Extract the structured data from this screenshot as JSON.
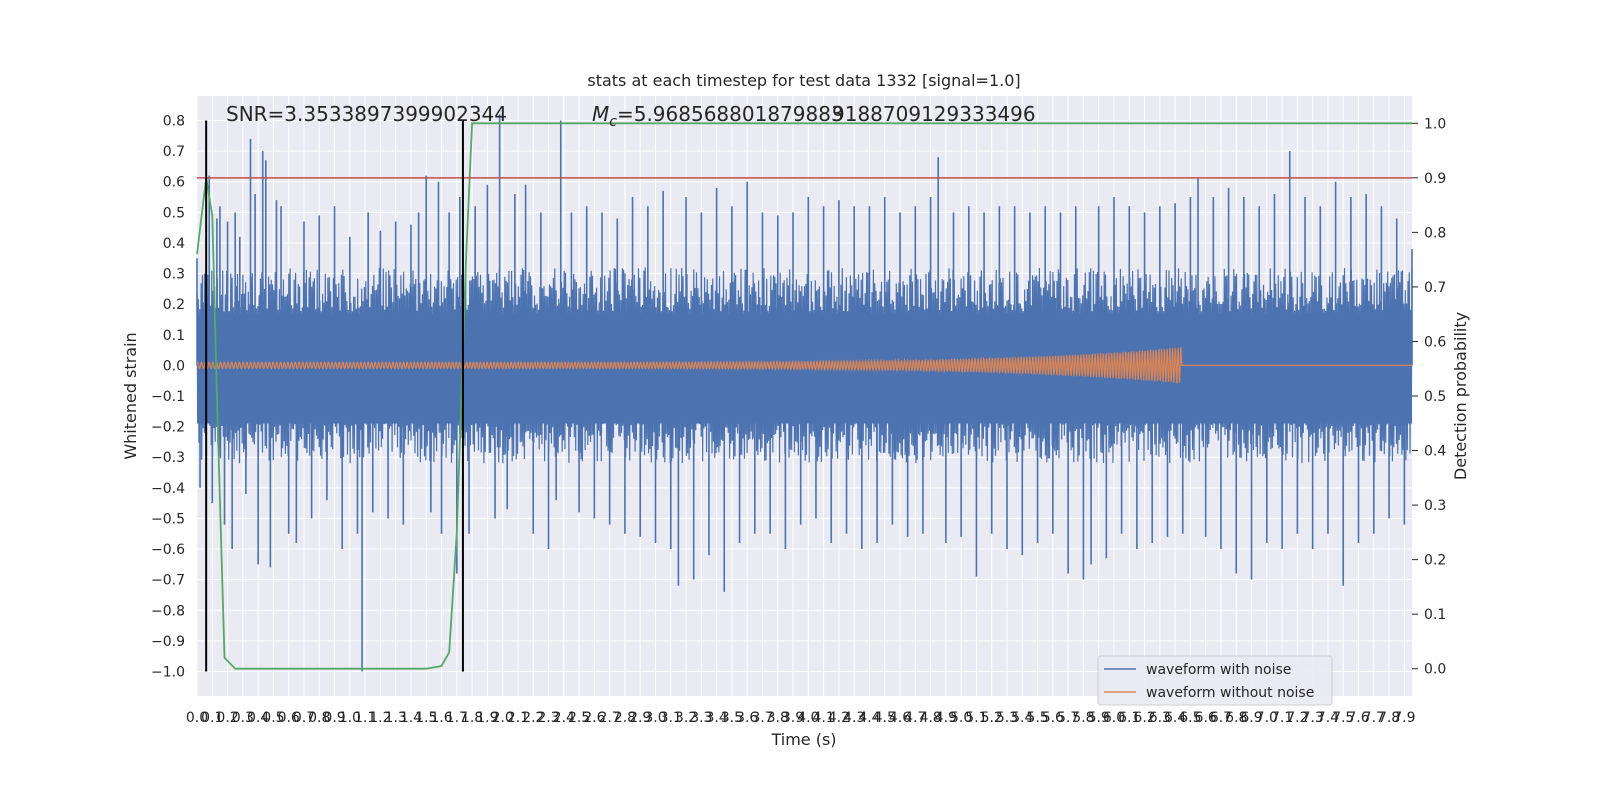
{
  "chart_data": {
    "type": "line",
    "title": "stats at each timestep for test data 1332 [signal=1.0]",
    "xlabel": "Time (s)",
    "ylabel_left": "Whitened strain",
    "ylabel_right": "Detection probability",
    "xlim": [
      0.0,
      7.95
    ],
    "ylim_left": [
      -1.08,
      0.88
    ],
    "ylim_right": [
      -0.05,
      1.05
    ],
    "x_ticks": [
      "0.0",
      "0.1",
      "0.2",
      "0.3",
      "0.4",
      "0.5",
      "0.6",
      "0.7",
      "0.8",
      "0.9",
      "1.0",
      "1.1",
      "1.2",
      "1.3",
      "1.4",
      "1.5",
      "1.6",
      "1.7",
      "1.8",
      "1.9",
      "2.0",
      "2.1",
      "2.2",
      "2.3",
      "2.4",
      "2.5",
      "2.6",
      "2.7",
      "2.8",
      "2.9",
      "3.0",
      "3.1",
      "3.2",
      "3.3",
      "3.4",
      "3.5",
      "3.6",
      "3.7",
      "3.8",
      "3.9",
      "4.0",
      "4.1",
      "4.2",
      "4.3",
      "4.4",
      "4.5",
      "4.6",
      "4.7",
      "4.8",
      "4.9",
      "5.0",
      "5.1",
      "5.2",
      "5.3",
      "5.4",
      "5.5",
      "5.6",
      "5.7",
      "5.8",
      "5.9",
      "6.0",
      "6.1",
      "6.2",
      "6.3",
      "6.4",
      "6.5",
      "6.6",
      "6.7",
      "6.8",
      "6.9",
      "7.0",
      "7.1",
      "7.2",
      "7.3",
      "7.4",
      "7.5",
      "7.6",
      "7.7",
      "7.8",
      "7.9"
    ],
    "y_ticks_left": [
      "0.8",
      "0.7",
      "0.6",
      "0.5",
      "0.4",
      "0.3",
      "0.2",
      "0.1",
      "0.0",
      "−0.1",
      "−0.2",
      "−0.3",
      "−0.4",
      "−0.5",
      "−0.6",
      "−0.7",
      "−0.8",
      "−0.9",
      "−1.0"
    ],
    "y_ticks_right": [
      "1.0",
      "0.9",
      "0.8",
      "0.7",
      "0.6",
      "0.5",
      "0.4",
      "0.3",
      "0.2",
      "0.1",
      "0.0"
    ],
    "annotations": {
      "snr": "SNR=3.3533897399902344",
      "mc_prefix": "M",
      "mc_sub": "c",
      "mc_value": "=5.968568801879883",
      "mc_overlap": "9188709129333496"
    },
    "grid": true,
    "legend_position": "lower-right",
    "threshold": {
      "axis": "right",
      "y": 0.9,
      "color": "#c44e52"
    },
    "vlines": {
      "axis": "left",
      "x": [
        0.06,
        1.74
      ],
      "y_range": [
        -1.0,
        0.8
      ],
      "color": "#000000"
    },
    "series": [
      {
        "name": "waveform with noise",
        "color": "#4c72b0",
        "axis": "left",
        "kind": "noise",
        "typical_envelope": 0.32,
        "spikes": [
          [
            0.0,
            0.35
          ],
          [
            0.02,
            -0.4
          ],
          [
            0.05,
            0.3
          ],
          [
            0.08,
            0.62
          ],
          [
            0.1,
            -0.45
          ],
          [
            0.13,
            0.48
          ],
          [
            0.15,
            0.52
          ],
          [
            0.18,
            -0.52
          ],
          [
            0.2,
            0.47
          ],
          [
            0.23,
            -0.6
          ],
          [
            0.25,
            0.5
          ],
          [
            0.28,
            0.42
          ],
          [
            0.32,
            -0.42
          ],
          [
            0.35,
            0.74
          ],
          [
            0.38,
            0.56
          ],
          [
            0.4,
            -0.65
          ],
          [
            0.43,
            0.7
          ],
          [
            0.45,
            0.67
          ],
          [
            0.48,
            -0.66
          ],
          [
            0.52,
            0.54
          ],
          [
            0.55,
            0.52
          ],
          [
            0.6,
            -0.55
          ],
          [
            0.65,
            -0.58
          ],
          [
            0.7,
            0.47
          ],
          [
            0.75,
            -0.5
          ],
          [
            0.8,
            0.49
          ],
          [
            0.85,
            -0.44
          ],
          [
            0.9,
            0.52
          ],
          [
            0.95,
            -0.6
          ],
          [
            1.0,
            0.42
          ],
          [
            1.05,
            -0.55
          ],
          [
            1.08,
            -1.0
          ],
          [
            1.12,
            0.5
          ],
          [
            1.15,
            -0.48
          ],
          [
            1.2,
            0.44
          ],
          [
            1.25,
            -0.5
          ],
          [
            1.3,
            0.47
          ],
          [
            1.35,
            -0.52
          ],
          [
            1.4,
            0.46
          ],
          [
            1.45,
            0.5
          ],
          [
            1.5,
            0.62
          ],
          [
            1.53,
            -0.48
          ],
          [
            1.58,
            0.6
          ],
          [
            1.6,
            -0.55
          ],
          [
            1.65,
            0.5
          ],
          [
            1.7,
            -0.68
          ],
          [
            1.72,
            0.55
          ],
          [
            1.78,
            -0.55
          ],
          [
            1.82,
            0.52
          ],
          [
            1.9,
            0.59
          ],
          [
            1.95,
            -0.5
          ],
          [
            1.98,
            0.82
          ],
          [
            2.03,
            -0.47
          ],
          [
            2.08,
            0.56
          ],
          [
            2.15,
            0.59
          ],
          [
            2.2,
            -0.55
          ],
          [
            2.25,
            0.5
          ],
          [
            2.3,
            -0.6
          ],
          [
            2.35,
            -0.44
          ],
          [
            2.38,
            0.8
          ],
          [
            2.45,
            0.5
          ],
          [
            2.5,
            -0.48
          ],
          [
            2.55,
            0.52
          ],
          [
            2.6,
            -0.5
          ],
          [
            2.65,
            0.5
          ],
          [
            2.7,
            -0.52
          ],
          [
            2.75,
            0.48
          ],
          [
            2.8,
            -0.55
          ],
          [
            2.85,
            0.55
          ],
          [
            2.9,
            -0.56
          ],
          [
            2.95,
            0.52
          ],
          [
            3.0,
            -0.58
          ],
          [
            3.05,
            0.57
          ],
          [
            3.1,
            -0.6
          ],
          [
            3.15,
            -0.72
          ],
          [
            3.2,
            0.55
          ],
          [
            3.25,
            -0.7
          ],
          [
            3.3,
            0.5
          ],
          [
            3.35,
            -0.62
          ],
          [
            3.4,
            0.58
          ],
          [
            3.45,
            -0.74
          ],
          [
            3.5,
            0.52
          ],
          [
            3.55,
            -0.58
          ],
          [
            3.6,
            0.6
          ],
          [
            3.65,
            -0.55
          ],
          [
            3.7,
            0.5
          ],
          [
            3.75,
            -0.55
          ],
          [
            3.8,
            0.49
          ],
          [
            3.85,
            -0.6
          ],
          [
            3.9,
            0.5
          ],
          [
            3.95,
            -0.52
          ],
          [
            4.0,
            0.55
          ],
          [
            4.05,
            -0.5
          ],
          [
            4.1,
            0.52
          ],
          [
            4.15,
            -0.58
          ],
          [
            4.2,
            0.54
          ],
          [
            4.25,
            -0.55
          ],
          [
            4.3,
            0.52
          ],
          [
            4.35,
            -0.6
          ],
          [
            4.4,
            0.52
          ],
          [
            4.45,
            -0.58
          ],
          [
            4.5,
            0.55
          ],
          [
            4.55,
            -0.52
          ],
          [
            4.6,
            0.5
          ],
          [
            4.65,
            -0.56
          ],
          [
            4.7,
            0.52
          ],
          [
            4.75,
            -0.55
          ],
          [
            4.8,
            0.55
          ],
          [
            4.85,
            0.68
          ],
          [
            4.9,
            -0.58
          ],
          [
            4.95,
            0.5
          ],
          [
            5.0,
            -0.56
          ],
          [
            5.05,
            0.52
          ],
          [
            5.1,
            -0.69
          ],
          [
            5.15,
            0.5
          ],
          [
            5.2,
            -0.55
          ],
          [
            5.25,
            0.52
          ],
          [
            5.3,
            -0.6
          ],
          [
            5.35,
            0.52
          ],
          [
            5.4,
            -0.62
          ],
          [
            5.45,
            0.5
          ],
          [
            5.5,
            -0.58
          ],
          [
            5.55,
            0.52
          ],
          [
            5.6,
            -0.55
          ],
          [
            5.65,
            0.5
          ],
          [
            5.7,
            -0.68
          ],
          [
            5.75,
            0.52
          ],
          [
            5.8,
            -0.7
          ],
          [
            5.85,
            -0.65
          ],
          [
            5.9,
            0.52
          ],
          [
            5.95,
            -0.63
          ],
          [
            6.0,
            0.55
          ],
          [
            6.05,
            -0.55
          ],
          [
            6.1,
            0.52
          ],
          [
            6.15,
            -0.6
          ],
          [
            6.2,
            0.5
          ],
          [
            6.25,
            -0.58
          ],
          [
            6.3,
            0.52
          ],
          [
            6.35,
            -0.56
          ],
          [
            6.4,
            0.53
          ],
          [
            6.45,
            -0.55
          ],
          [
            6.5,
            0.55
          ],
          [
            6.55,
            0.61
          ],
          [
            6.6,
            -0.56
          ],
          [
            6.65,
            0.55
          ],
          [
            6.7,
            -0.6
          ],
          [
            6.75,
            0.58
          ],
          [
            6.8,
            -0.68
          ],
          [
            6.85,
            0.55
          ],
          [
            6.9,
            -0.7
          ],
          [
            6.95,
            0.52
          ],
          [
            7.0,
            -0.58
          ],
          [
            7.05,
            0.56
          ],
          [
            7.1,
            -0.6
          ],
          [
            7.15,
            0.7
          ],
          [
            7.2,
            -0.55
          ],
          [
            7.25,
            0.55
          ],
          [
            7.3,
            -0.6
          ],
          [
            7.35,
            0.52
          ],
          [
            7.4,
            -0.55
          ],
          [
            7.45,
            0.6
          ],
          [
            7.5,
            -0.72
          ],
          [
            7.55,
            0.55
          ],
          [
            7.6,
            -0.58
          ],
          [
            7.65,
            0.56
          ],
          [
            7.7,
            -0.55
          ],
          [
            7.75,
            0.52
          ],
          [
            7.8,
            -0.5
          ],
          [
            7.85,
            0.48
          ],
          [
            7.9,
            -0.52
          ],
          [
            7.95,
            0.38
          ]
        ]
      },
      {
        "name": "waveform without noise",
        "color": "#dd8452",
        "axis": "left",
        "kind": "chirp",
        "x_range": [
          0.0,
          6.44
        ],
        "amplitude_start": 0.01,
        "amplitude_peak": 0.06,
        "merger_x": 6.44
      },
      {
        "name": "detection probability",
        "color": "#55a868",
        "axis": "right",
        "points": [
          [
            0.0,
            0.76
          ],
          [
            0.06,
            0.9
          ],
          [
            0.1,
            0.83
          ],
          [
            0.13,
            0.5
          ],
          [
            0.18,
            0.02
          ],
          [
            0.25,
            0.0
          ],
          [
            1.0,
            0.0
          ],
          [
            1.5,
            0.0
          ],
          [
            1.6,
            0.005
          ],
          [
            1.65,
            0.03
          ],
          [
            1.7,
            0.25
          ],
          [
            1.76,
            0.75
          ],
          [
            1.8,
            1.0
          ],
          [
            7.95,
            1.0
          ]
        ]
      }
    ]
  }
}
